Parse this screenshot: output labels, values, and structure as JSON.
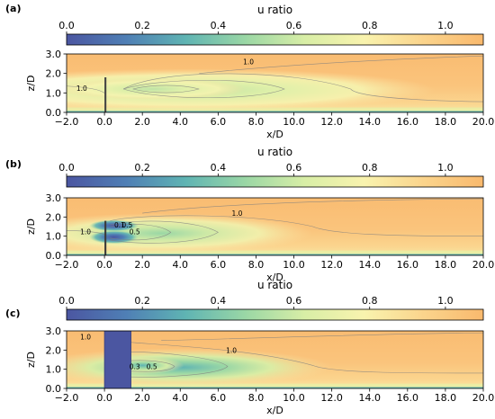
{
  "figure": {
    "colorbar": {
      "label": "u ratio",
      "ticks": [
        "0.0",
        "0.2",
        "0.4",
        "0.6",
        "0.8",
        "1.0"
      ],
      "tick_values": [
        0.0,
        0.2,
        0.4,
        0.6,
        0.8,
        1.0
      ],
      "range": [
        0.0,
        1.1
      ],
      "colormap": [
        "#4b56a1",
        "#4f7fb5",
        "#5fb4b3",
        "#9ad7a5",
        "#d8eea6",
        "#f9f3ae",
        "#fbd48c",
        "#f9b96d"
      ]
    },
    "x_ticks": [
      "−2.0",
      "0.0",
      "2.0",
      "4.0",
      "6.0",
      "8.0",
      "10.0",
      "12.0",
      "14.0",
      "16.0",
      "18.0",
      "20.0"
    ],
    "y_ticks": [
      "0.0",
      "1.0",
      "2.0",
      "3.0"
    ],
    "xlabel": "x/D",
    "ylabel": "z/D"
  },
  "chart_data": [
    {
      "type": "heatmap",
      "panel_label": "(a)",
      "colorbar_label": "u ratio",
      "xlabel": "x/D",
      "ylabel": "z/D",
      "xlim": [
        -2.0,
        20.0
      ],
      "ylim": [
        0.0,
        3.0
      ],
      "obstacle": {
        "x0": 0.0,
        "x1": 0.1,
        "z0": 0.0,
        "z1": 1.8,
        "type": "thin fence"
      },
      "wake": {
        "center_x": 2.5,
        "center_z": 1.2,
        "min_u_ratio": 0.65
      },
      "contour_labels": [
        {
          "text": "1.0",
          "x": 7.6,
          "z": 2.6
        },
        {
          "text": "1.0",
          "x": -1.2,
          "z": 1.25
        }
      ]
    },
    {
      "type": "heatmap",
      "panel_label": "(b)",
      "colorbar_label": "u ratio",
      "xlabel": "x/D",
      "ylabel": "z/D",
      "xlim": [
        -2.0,
        20.0
      ],
      "ylim": [
        0.0,
        3.0
      ],
      "obstacle": {
        "x0": 0.0,
        "x1": 0.1,
        "z0": 0.0,
        "z1": 1.8,
        "type": "porous fence"
      },
      "wake": {
        "center_x": 0.6,
        "center_z": 1.2,
        "min_u_ratio": 0.0
      },
      "contour_labels": [
        {
          "text": "1.0",
          "x": 7.0,
          "z": 2.2
        },
        {
          "text": "1.0",
          "x": -1.0,
          "z": 1.25
        },
        {
          "text": "0.1",
          "x": 0.8,
          "z": 1.6
        },
        {
          "text": "0.5",
          "x": 1.2,
          "z": 1.6
        },
        {
          "text": "0.5",
          "x": 1.6,
          "z": 1.25
        }
      ]
    },
    {
      "type": "heatmap",
      "panel_label": "(c)",
      "colorbar_label": "u ratio",
      "xlabel": "x/D",
      "ylabel": "z/D",
      "xlim": [
        -2.0,
        20.0
      ],
      "ylim": [
        0.0,
        3.0
      ],
      "obstacle": {
        "x0": 0.0,
        "x1": 1.4,
        "z0": 0.0,
        "z1": 3.0,
        "type": "solid block"
      },
      "wake": {
        "center_x": 2.0,
        "center_z": 1.2,
        "min_u_ratio": 0.3
      },
      "contour_labels": [
        {
          "text": "1.0",
          "x": 6.7,
          "z": 2.0
        },
        {
          "text": "1.0",
          "x": -1.0,
          "z": 2.7
        },
        {
          "text": "0.3",
          "x": 1.6,
          "z": 1.15
        },
        {
          "text": "0.5",
          "x": 2.5,
          "z": 1.15
        }
      ]
    }
  ]
}
